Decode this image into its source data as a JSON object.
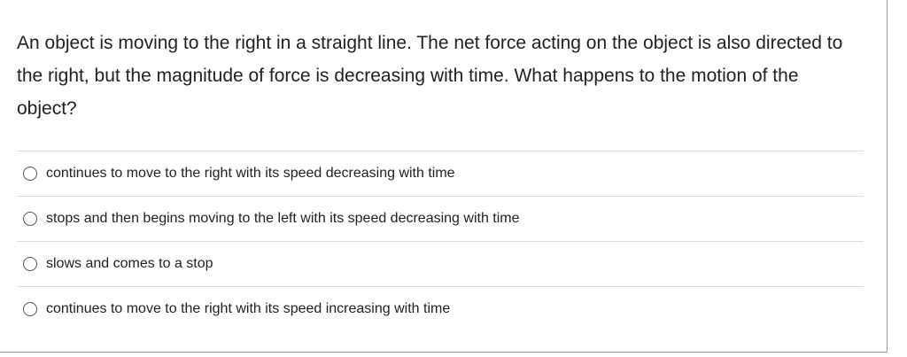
{
  "question": "An object is moving to the right in a straight line. The net force acting on the object is also directed to the right, but the magnitude of force is decreasing with time. What happens to the motion of the object?",
  "options": [
    {
      "label": "continues to move to the right with its speed decreasing with time",
      "selected": false
    },
    {
      "label": "stops and then begins moving to the left with its speed decreasing with time",
      "selected": false
    },
    {
      "label": "slows and comes to a stop",
      "selected": false
    },
    {
      "label": "continues to move to the right with its speed increasing with time",
      "selected": false
    }
  ]
}
